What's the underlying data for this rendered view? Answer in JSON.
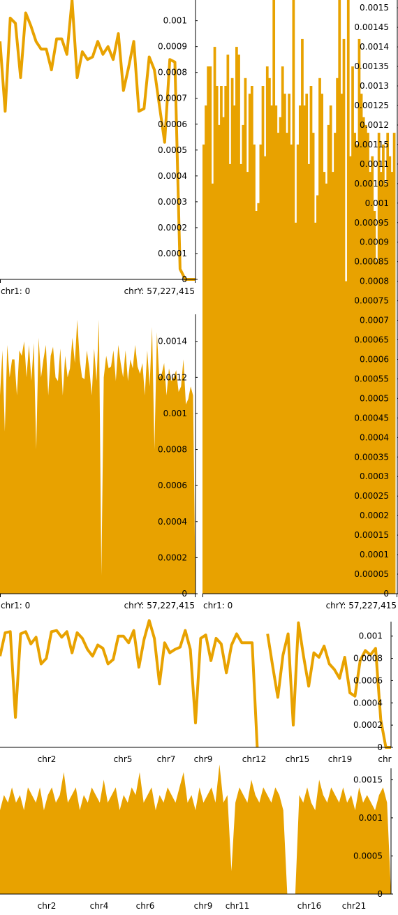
{
  "colors": {
    "series": "#E8A200",
    "axis": "#000000",
    "background": "#ffffff"
  },
  "chart_data": [
    {
      "id": "p1",
      "type": "line",
      "ylim": [
        0,
        0.00108
      ],
      "ticks": [
        "0",
        "0.0001",
        "0.0002",
        "0.0003",
        "0.0004",
        "0.0005",
        "0.0006",
        "0.0007",
        "0.0008",
        "0.0009",
        "0.001"
      ],
      "start_label": "chr1: 0",
      "end_label": "chrY: 57,227,415",
      "values": [
        0.00092,
        0.00065,
        0.00101,
        0.00099,
        0.00078,
        0.00103,
        0.00098,
        0.00092,
        0.00089,
        0.00089,
        0.00081,
        0.00093,
        0.00093,
        0.00087,
        0.00108,
        0.00078,
        0.00088,
        0.00085,
        0.00086,
        0.00092,
        0.00087,
        0.0009,
        0.00085,
        0.00095,
        0.00073,
        0.00082,
        0.00092,
        0.00065,
        0.00066,
        0.00086,
        0.00081,
        0.00067,
        0.00053,
        0.00085,
        0.00084,
        4e-05,
        0.0,
        0.0,
        0.0
      ]
    },
    {
      "id": "p2",
      "type": "area",
      "ylim": [
        0,
        0.00155
      ],
      "ticks": [
        "0",
        "0.0002",
        "0.0004",
        "0.0006",
        "0.0008",
        "0.001",
        "0.0012",
        "0.0014"
      ],
      "start_label": "chr1: 0",
      "end_label": "chrY: 57,227,415",
      "values": [
        0.0011,
        0.00135,
        0.0009,
        0.00138,
        0.0012,
        0.0013,
        0.0013,
        0.0011,
        0.00135,
        0.00132,
        0.0014,
        0.0012,
        0.00138,
        0.00118,
        0.00139,
        0.0008,
        0.00142,
        0.0012,
        0.0013,
        0.00138,
        0.0011,
        0.00132,
        0.00137,
        0.0012,
        0.00118,
        0.00136,
        0.0011,
        0.00132,
        0.0012,
        0.00125,
        0.00142,
        0.00128,
        0.00152,
        0.0013,
        0.0012,
        0.00119,
        0.00135,
        0.00125,
        0.0011,
        0.00136,
        0.00118,
        0.00152,
        0.0001,
        0.0012,
        0.00132,
        0.00125,
        0.00126,
        0.00135,
        0.00118,
        0.00138,
        0.00128,
        0.0012,
        0.00135,
        0.00118,
        0.0013,
        0.00125,
        0.00138,
        0.00126,
        0.00122,
        0.00128,
        0.0011,
        0.00135,
        0.00115,
        0.00148,
        0.0008,
        0.00145,
        0.0012,
        0.00122,
        0.00128,
        0.0011,
        0.00125,
        0.00118,
        0.0012,
        0.00124,
        0.00112,
        0.00115,
        0.0013,
        0.00105,
        0.00108,
        0.00115,
        0.0011,
        0.0
      ]
    },
    {
      "id": "p3",
      "type": "bar",
      "ylim": [
        0,
        0.00152
      ],
      "ticks": [
        "0",
        "0.00005",
        "0.0001",
        "0.00015",
        "0.0002",
        "0.00025",
        "0.0003",
        "0.00035",
        "0.0004",
        "0.00045",
        "0.0005",
        "0.00055",
        "0.0006",
        "0.00065",
        "0.0007",
        "0.00075",
        "0.0008",
        "0.00085",
        "0.0009",
        "0.00095",
        "0.001",
        "0.00105",
        "0.0011",
        "0.00115",
        "0.0012",
        "0.00125",
        "0.0013",
        "0.00135",
        "0.0014",
        "0.00145",
        "0.0015"
      ],
      "start_label": "chr1: 0",
      "end_label": "chrY: 57,227,415",
      "values": [
        0.00115,
        0.00125,
        0.00135,
        0.00135,
        0.00105,
        0.0014,
        0.0013,
        0.0012,
        0.0013,
        0.00122,
        0.0013,
        0.00138,
        0.0011,
        0.00132,
        0.00125,
        0.0014,
        0.00138,
        0.0011,
        0.0012,
        0.00132,
        0.00108,
        0.00128,
        0.0013,
        0.00115,
        0.00098,
        0.001,
        0.00115,
        0.0013,
        0.00112,
        0.00135,
        0.00132,
        0.00125,
        0.00155,
        0.00125,
        0.00118,
        0.00122,
        0.00135,
        0.00128,
        0.00118,
        0.00128,
        0.00115,
        0.00152,
        0.00095,
        0.00115,
        0.00125,
        0.00142,
        0.00125,
        0.00128,
        0.0011,
        0.0013,
        0.00118,
        0.00095,
        0.00102,
        0.00132,
        0.00128,
        0.00108,
        0.00105,
        0.0012,
        0.00125,
        0.00108,
        0.00118,
        0.00132,
        0.00152,
        0.00128,
        0.00142,
        0.0008,
        0.00155,
        0.00112,
        0.00135,
        0.00118,
        0.00115,
        0.00142,
        0.00128,
        0.00122,
        0.0012,
        0.00118,
        0.00108,
        0.00112,
        0.00098,
        0.00085,
        0.00118,
        0.00108,
        0.00115,
        0.00105,
        0.00118,
        0.00112,
        0.00108,
        0.00118,
        0.0
      ]
    },
    {
      "id": "p4",
      "type": "line",
      "ylim": [
        0,
        0.00113
      ],
      "ticks": [
        "0",
        "0.0002",
        "0.0004",
        "0.0006",
        "0.0008",
        "0.001"
      ],
      "x_labels": [
        "chr2",
        "chr5",
        "chr7",
        "chr9",
        "chr12",
        "chr15",
        "chr19",
        "chr"
      ],
      "values": [
        0.00082,
        0.00103,
        0.00104,
        0.00027,
        0.00102,
        0.00104,
        0.00093,
        0.00099,
        0.00075,
        0.0008,
        0.00104,
        0.00105,
        0.00099,
        0.00104,
        0.00085,
        0.00103,
        0.00098,
        0.00088,
        0.00082,
        0.00092,
        0.00089,
        0.00075,
        0.00079,
        0.001,
        0.001,
        0.00094,
        0.00105,
        0.00072,
        0.00097,
        0.00114,
        0.00098,
        0.00057,
        0.00094,
        0.00085,
        0.00088,
        0.0009,
        0.00105,
        0.00088,
        0.00022,
        0.00098,
        0.00101,
        0.00078,
        0.00098,
        0.00093,
        0.00067,
        0.00092,
        0.00102,
        0.00094,
        0.00094,
        0.00094,
        0.0,
        null,
        0.00102,
        0.00073,
        0.00045,
        0.00083,
        0.00102,
        0.0002,
        0.00112,
        0.00082,
        0.00055,
        0.00085,
        0.00081,
        0.00091,
        0.00075,
        0.0007,
        0.00062,
        0.00081,
        0.00049,
        0.00046,
        0.00078,
        0.00087,
        0.00083,
        0.00089,
        0.00025,
        0.0,
        0.0
      ]
    },
    {
      "id": "p5",
      "type": "area",
      "ylim": [
        0,
        0.00165
      ],
      "ticks": [
        "0",
        "0.0005",
        "0.001",
        "0.0015"
      ],
      "x_labels": [
        "chr2",
        "chr4",
        "chr6",
        "chr9",
        "chr11",
        "chr16",
        "chr21"
      ],
      "values": [
        0.0011,
        0.0013,
        0.0012,
        0.0014,
        0.0012,
        0.0013,
        0.0011,
        0.0014,
        0.0013,
        0.0012,
        0.0014,
        0.0011,
        0.0013,
        0.0014,
        0.0012,
        0.0013,
        0.0016,
        0.0012,
        0.0013,
        0.0014,
        0.0011,
        0.0013,
        0.0012,
        0.0014,
        0.0013,
        0.0012,
        0.0015,
        0.0012,
        0.0013,
        0.0014,
        0.0011,
        0.0013,
        0.0012,
        0.0014,
        0.0013,
        0.0016,
        0.0012,
        0.0013,
        0.0014,
        0.0011,
        0.0013,
        0.0012,
        0.0014,
        0.0013,
        0.0012,
        0.0014,
        0.0016,
        0.0012,
        0.0013,
        0.0011,
        0.0014,
        0.0012,
        0.0013,
        0.0014,
        0.0012,
        0.0017,
        0.0012,
        0.0013,
        0.0003,
        0.0012,
        0.0014,
        0.0013,
        0.0012,
        0.0015,
        0.0013,
        0.0012,
        0.0014,
        0.0013,
        0.0012,
        0.0014,
        0.0013,
        0.0011,
        0.0,
        0.0,
        0.0,
        0.0013,
        0.0012,
        0.0014,
        0.0012,
        0.0011,
        0.0015,
        0.0013,
        0.0012,
        0.0014,
        0.0013,
        0.0012,
        0.0014,
        0.0012,
        0.0013,
        0.0011,
        0.0014,
        0.0012,
        0.0013,
        0.0012,
        0.0011,
        0.0013,
        0.0014,
        0.0012,
        0.0
      ]
    }
  ]
}
